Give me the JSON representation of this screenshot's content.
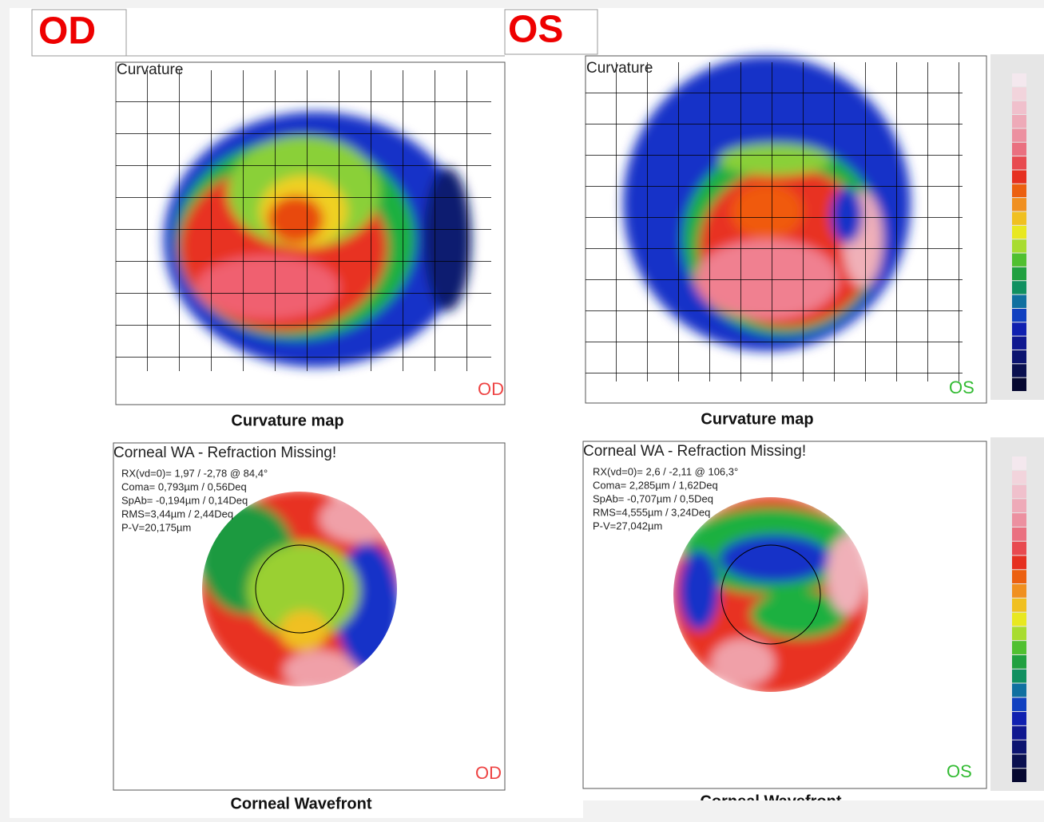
{
  "panels": [
    {
      "eye": "OD",
      "curvature": {
        "title": "Curvature",
        "corner": "OD",
        "caption": "Curvature map"
      },
      "wavefront": {
        "title": "Corneal WA - Refraction Missing!",
        "lines": [
          "RX(vd=0)= 1,97 / -2,78 @ 84,4°",
          "Coma= 0,793µm / 0,56Deq",
          "SpAb= -0,194µm / 0,14Deq",
          "RMS=3,44µm / 2,44Deq",
          "P-V=20,175µm"
        ],
        "corner": "OD",
        "caption": "Corneal Wavefront"
      }
    },
    {
      "eye": "OS",
      "curvature": {
        "title": "Curvature",
        "corner": "OS",
        "caption": "Curvature map"
      },
      "wavefront": {
        "title": "Corneal WA - Refraction Missing!",
        "lines": [
          "RX(vd=0)= 2,6 / -2,11 @ 106,3°",
          "Coma= 2,285µm / 1,62Deq",
          "SpAb= -0,707µm / 0,5Deq",
          "RMS=4,555µm / 3,24Deq",
          "P-V=27,042µm"
        ],
        "corner": "OS",
        "caption": "Corneal Wavefront"
      }
    }
  ]
}
